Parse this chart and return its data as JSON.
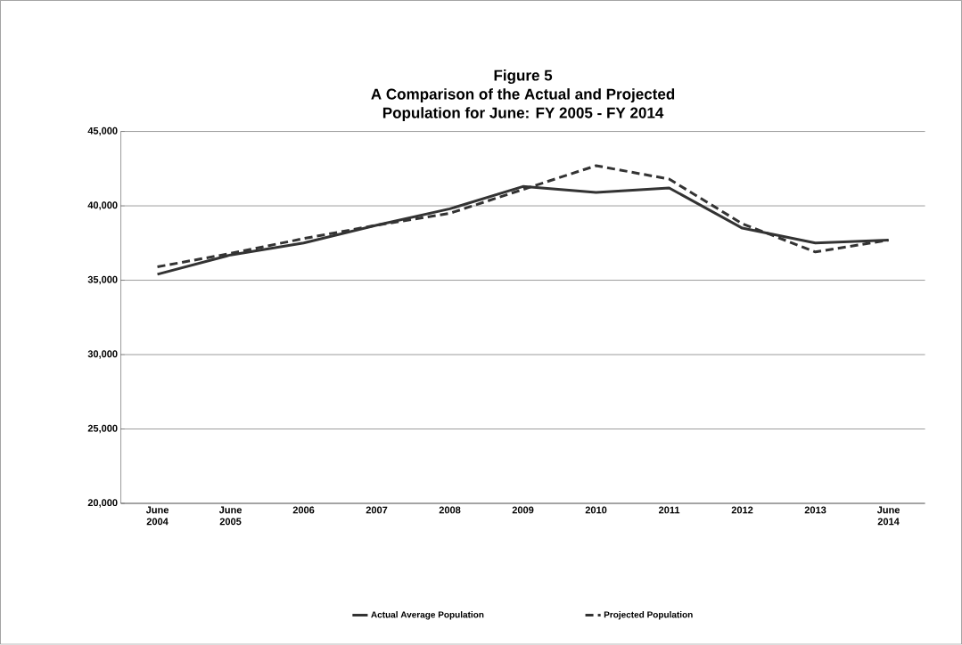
{
  "chart_data": {
    "type": "line",
    "title": "Figure 5\nA Comparison of the Actual and Projected\nPopulation for June: FY 2005 - FY 2014",
    "categories": [
      "June 2004",
      "June 2005",
      "2006",
      "2007",
      "2008",
      "2009",
      "2010",
      "2011",
      "2012",
      "2013",
      "June 2014"
    ],
    "series": [
      {
        "name": "Actual Average Population",
        "color": "#333333",
        "line_style": "solid",
        "values": [
          35400,
          36700,
          37500,
          38700,
          39800,
          41300,
          40900,
          41200,
          38500,
          37500,
          37700
        ]
      },
      {
        "name": "Projected Population",
        "color": "#333333",
        "line_style": "dashed",
        "values": [
          35900,
          36800,
          37800,
          38700,
          39500,
          41100,
          42700,
          41800,
          38800,
          36900,
          37700
        ]
      }
    ],
    "ylim": [
      20000,
      45000
    ],
    "yticks": [
      {
        "value": 20000,
        "label": "20,000"
      },
      {
        "value": 25000,
        "label": "25,000"
      },
      {
        "value": 30000,
        "label": "30,000"
      },
      {
        "value": 35000,
        "label": "35,000"
      },
      {
        "value": 40000,
        "label": "40,000"
      },
      {
        "value": 45000,
        "label": "45,000"
      }
    ],
    "grid": "y",
    "legend": "bottom",
    "marker": "none"
  }
}
